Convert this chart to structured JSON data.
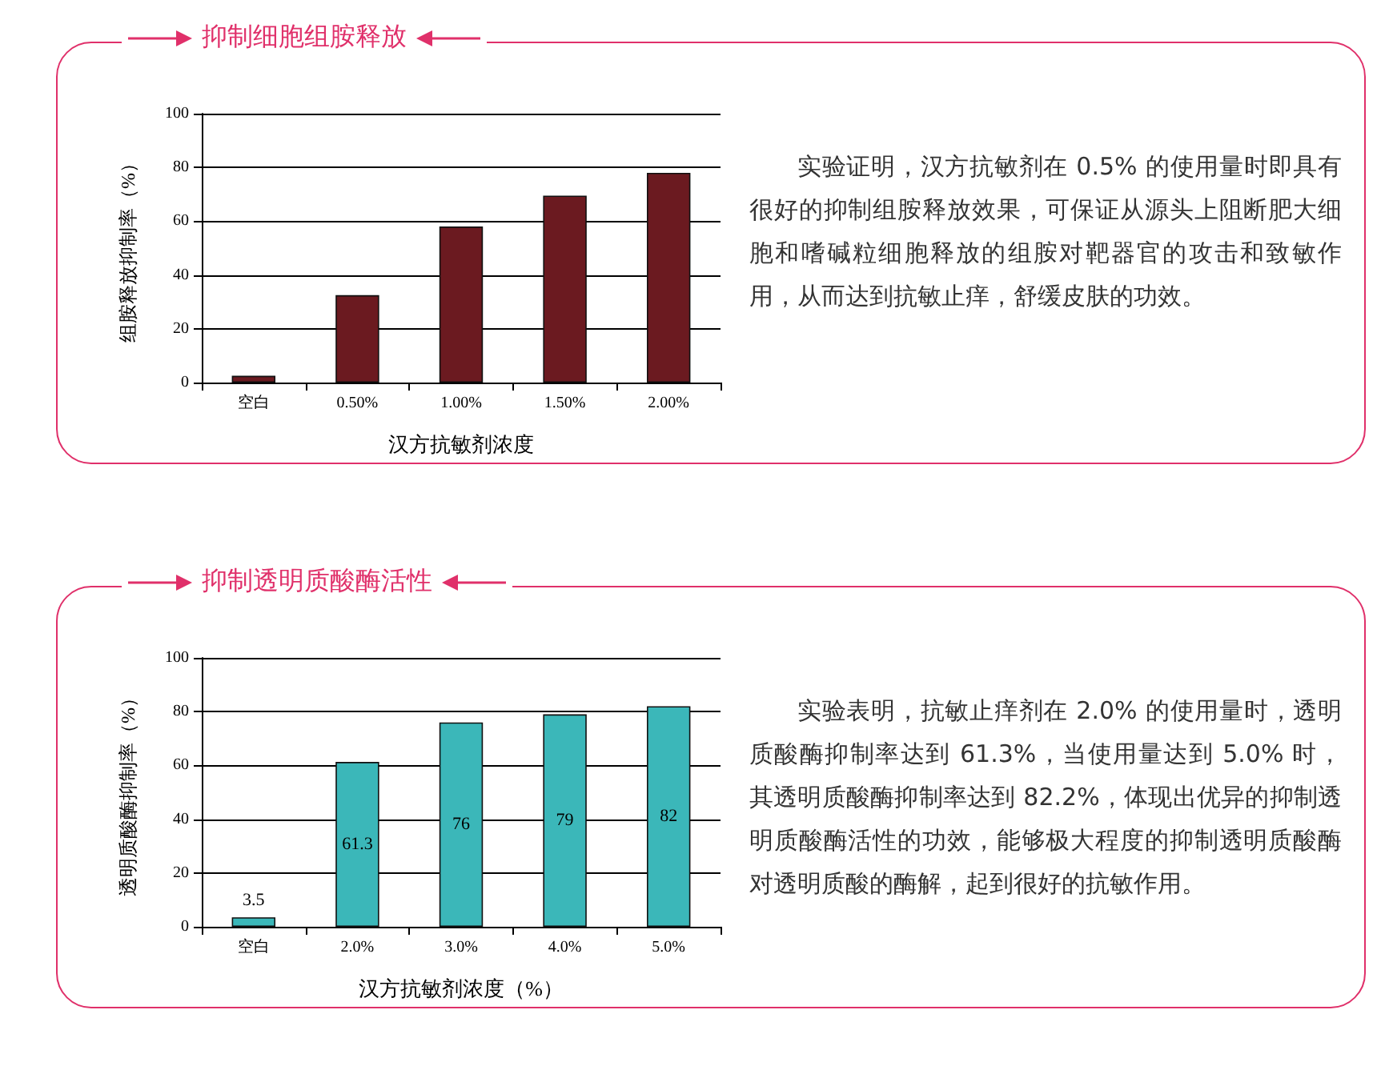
{
  "chart_data": [
    {
      "type": "bar",
      "title": "抑制细胞组胺释放",
      "xlabel": "汉方抗敏剂浓度",
      "ylabel": "组胺释放抑制率（%）",
      "categories": [
        "空白",
        "0.50%",
        "1.00%",
        "1.50%",
        "2.00%"
      ],
      "series": [
        {
          "color": "#6b1a20",
          "values": [
            2.5,
            32.5,
            58,
            69.5,
            78
          ]
        }
      ],
      "ylim": [
        0,
        100
      ],
      "yticks": [
        0,
        20,
        40,
        60,
        80,
        100
      ],
      "grid": "y",
      "annotations": [
        "实验证明，汉方抗敏剂在 0.5% 的使用量时即具有很好的抑制组胺释放效果，可保证从源头上阻断肥大细胞和嗜碱粒细胞释放的组胺对靶器官的攻击和致敏作用，从而达到抗敏止痒，舒缓皮肤的功效。"
      ]
    },
    {
      "type": "bar",
      "title": "抑制透明质酸酶活性",
      "xlabel": "汉方抗敏剂浓度（%）",
      "ylabel": "透明质酸酶抑制率（%）",
      "categories": [
        "空白",
        "2.0%",
        "3.0%",
        "4.0%",
        "5.0%"
      ],
      "series": [
        {
          "color": "#3bb7b9",
          "values": [
            3.5,
            61.3,
            76,
            79,
            82
          ]
        }
      ],
      "ylim": [
        0,
        100
      ],
      "yticks": [
        0,
        20,
        40,
        60,
        80,
        100
      ],
      "grid": "y",
      "data_labels": true,
      "annotations": [
        "实验表明，抗敏止痒剂在 2.0% 的使用量时，透明质酸酶抑制率达到 61.3%，当使用量达到 5.0% 时，其透明质酸酶抑制率达到 82.2%，体现出优异的抑制透明质酸酶活性的功效，能够极大程度的抑制透明质酸酶对透明质酸的酶解，起到很好的抗敏作用。"
      ]
    }
  ]
}
